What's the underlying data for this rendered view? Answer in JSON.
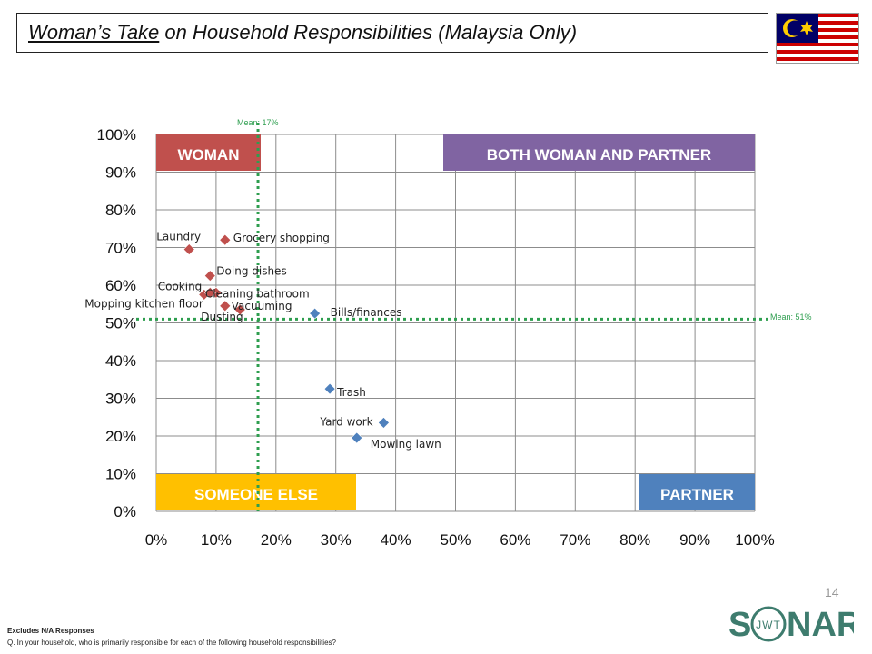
{
  "title": {
    "emphasis": "Woman’s Take",
    "rest": " on Household Responsibilities (Malaysia Only)"
  },
  "colors": {
    "woman_series": "#C0504D",
    "partner_series": "#4F81BD",
    "mean_line": "#2E9E4F",
    "woman_box": "#C0504D",
    "both_box": "#8064A2",
    "someone_box": "#FFC000",
    "partner_box": "#4F81BD"
  },
  "quadrants": {
    "woman": "WOMAN",
    "both": "BOTH WOMAN AND PARTNER",
    "someone_else": "SOMEONE ELSE",
    "partner": "PARTNER"
  },
  "mean_x_label": "Mean: 17%",
  "mean_y_label": "Mean: 51%",
  "page_number": "14",
  "footnote": {
    "line1": "Excludes N/A Responses",
    "line2": "Q. In your household, who is primarily responsible for each of the following household responsibilities?"
  },
  "logo": {
    "text_left": "S",
    "text_right": "NAR",
    "ring_text": "JWT"
  },
  "chart_data": {
    "type": "scatter",
    "xlim": [
      0,
      100
    ],
    "ylim": [
      0,
      100
    ],
    "x_ticks": [
      "0%",
      "10%",
      "20%",
      "30%",
      "40%",
      "50%",
      "60%",
      "70%",
      "80%",
      "90%",
      "100%"
    ],
    "y_ticks": [
      "0%",
      "10%",
      "20%",
      "30%",
      "40%",
      "50%",
      "60%",
      "70%",
      "80%",
      "90%",
      "100%"
    ],
    "grid": true,
    "mean_x": 17,
    "mean_y": 51,
    "series": [
      {
        "color": "#C0504D",
        "points": [
          {
            "label": "Laundry",
            "x": 5.5,
            "y": 69.5
          },
          {
            "label": "Grocery shopping",
            "x": 11.5,
            "y": 72
          },
          {
            "label": "Doing dishes",
            "x": 9,
            "y": 62.5
          },
          {
            "label": "Cooking",
            "x": 8,
            "y": 57.5
          },
          {
            "label": "Cleaning bathroom",
            "x": 10,
            "y": 58
          },
          {
            "label": "Mopping kitchen floor",
            "x": 9,
            "y": 58
          },
          {
            "label": "Vacuuming",
            "x": 11.5,
            "y": 54.5
          },
          {
            "label": "Dusting",
            "x": 14,
            "y": 53.5
          }
        ]
      },
      {
        "color": "#4F81BD",
        "points": [
          {
            "label": "Bills/finances",
            "x": 26.5,
            "y": 52.5
          },
          {
            "label": "Trash",
            "x": 29,
            "y": 32.5
          },
          {
            "label": "Yard work",
            "x": 38,
            "y": 23.5
          },
          {
            "label": "Mowing lawn",
            "x": 33.5,
            "y": 19.5
          }
        ]
      }
    ]
  }
}
